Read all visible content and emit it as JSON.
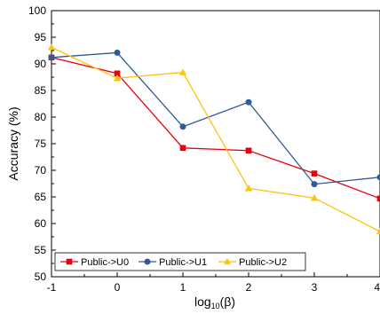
{
  "chart_data": {
    "type": "line",
    "x": [
      -1,
      0,
      1,
      2,
      3,
      4
    ],
    "x_tick_labels": [
      "-1",
      "0",
      "1",
      "2",
      "3",
      "4"
    ],
    "y_tick_labels": [
      "50",
      "55",
      "60",
      "65",
      "70",
      "75",
      "80",
      "85",
      "90",
      "95",
      "100"
    ],
    "xlim": [
      -1,
      4
    ],
    "ylim": [
      50,
      100
    ],
    "xlabel": "log",
    "xlabel_sub": "10",
    "xlabel_tail": "(β)",
    "ylabel": "Accuracy (%)",
    "grid": false,
    "legend_position": "bottom-left",
    "series": [
      {
        "name": "Public->U0",
        "color": "#e8000b",
        "marker": "square",
        "values": [
          91.2,
          88.2,
          74.2,
          73.7,
          69.4,
          64.7
        ]
      },
      {
        "name": "Public->U1",
        "color": "#2f5b96",
        "marker": "circle",
        "values": [
          91.2,
          92.1,
          78.2,
          82.8,
          67.4,
          68.7
        ]
      },
      {
        "name": "Public->U2",
        "color": "#ffc20e",
        "marker": "triangle",
        "values": [
          93.1,
          87.3,
          88.4,
          66.6,
          64.8,
          58.5
        ]
      }
    ]
  }
}
